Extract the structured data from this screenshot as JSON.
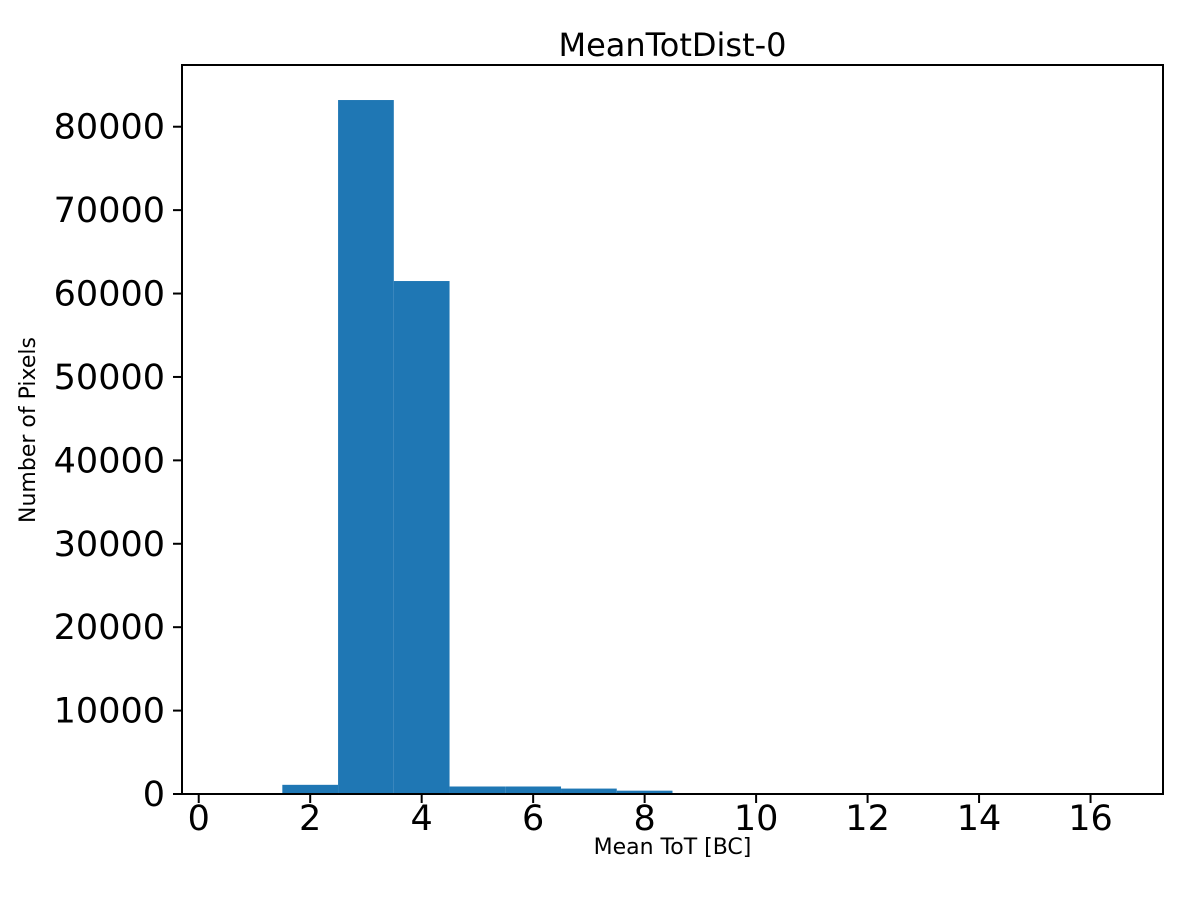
{
  "figure": {
    "background_color": "#ffffff",
    "text_color": "#000000"
  },
  "chart_data": {
    "type": "bar",
    "style": "histogram",
    "title": "MeanTotDist-0",
    "xlabel": "Mean ToT [BC]",
    "ylabel": "Number of Pixels",
    "bar_color": "#1f77b4",
    "bin_width": 1,
    "bin_edges": [
      1.5,
      2.5,
      3.5,
      4.5,
      5.5,
      6.5,
      7.5,
      8.5
    ],
    "bin_centers": [
      2,
      3,
      4,
      5,
      6,
      7,
      8
    ],
    "counts": [
      1100,
      83200,
      61500,
      900,
      900,
      650,
      400
    ],
    "xlim": [
      -0.3,
      17.3
    ],
    "ylim": [
      0,
      87400
    ],
    "xticks": [
      0,
      2,
      4,
      6,
      8,
      10,
      12,
      14,
      16
    ],
    "yticks": [
      0,
      10000,
      20000,
      30000,
      40000,
      50000,
      60000,
      70000,
      80000
    ],
    "grid": false,
    "legend": null
  }
}
